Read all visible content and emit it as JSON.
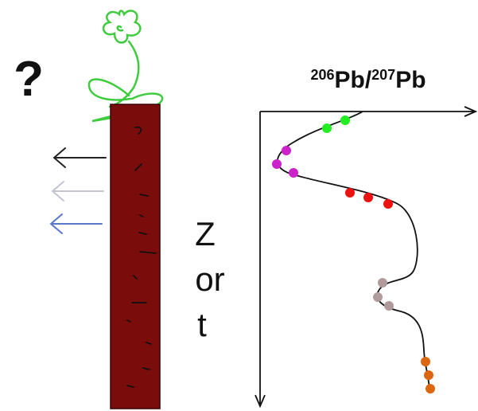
{
  "question_mark": "?",
  "axis_label": {
    "mass1": "206",
    "element1": "Pb/",
    "mass2": "207",
    "element2": "Pb"
  },
  "depth_label": {
    "line1": "Z",
    "line2": "or",
    "line3": "t"
  }
}
